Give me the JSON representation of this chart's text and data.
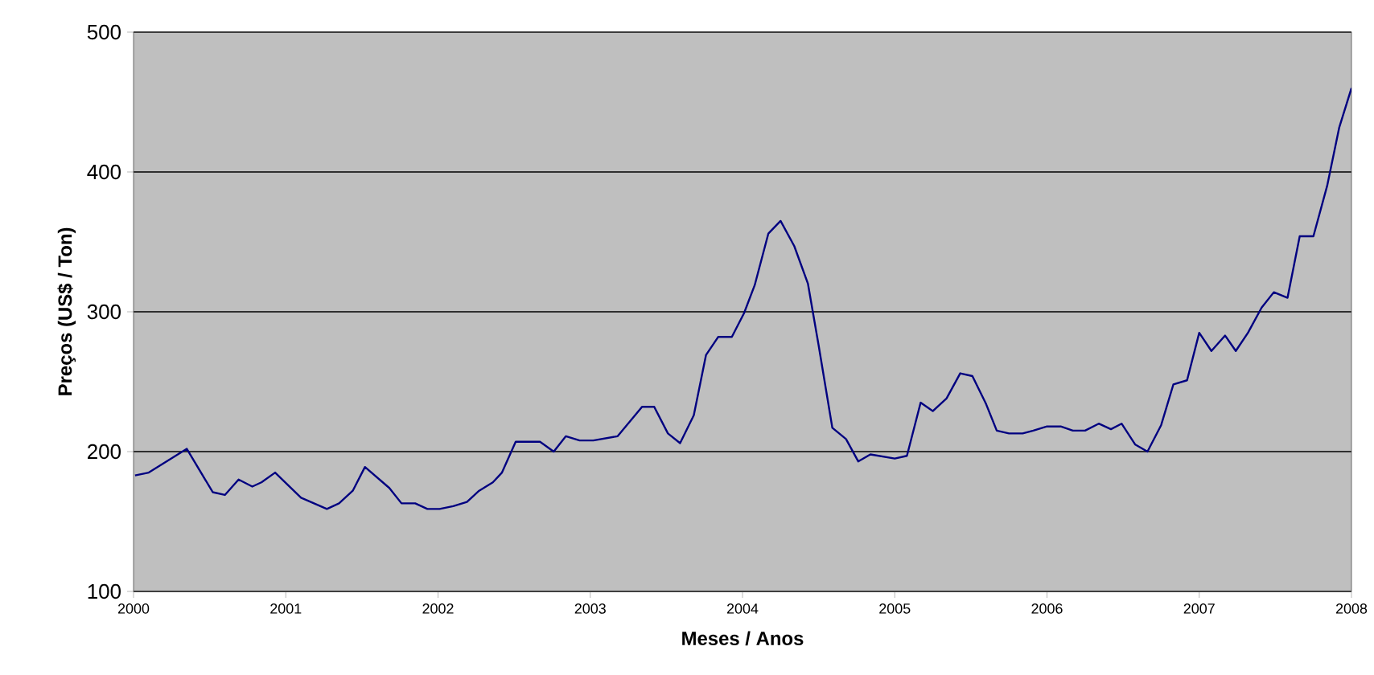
{
  "chart_data": {
    "type": "line",
    "xlabel": "Meses / Anos",
    "ylabel": "Preços (US$ / Ton)",
    "x": [
      2000.01,
      2000.1,
      2000.35,
      2000.52,
      2000.6,
      2000.69,
      2000.78,
      2000.84,
      2000.93,
      2001.1,
      2001.27,
      2001.35,
      2001.44,
      2001.52,
      2001.68,
      2001.76,
      2001.85,
      2001.93,
      2002.01,
      2002.1,
      2002.19,
      2002.27,
      2002.36,
      2002.42,
      2002.51,
      2002.67,
      2002.76,
      2002.84,
      2002.93,
      2003.02,
      2003.18,
      2003.34,
      2003.42,
      2003.51,
      2003.59,
      2003.68,
      2003.76,
      2003.84,
      2003.93,
      2004.01,
      2004.08,
      2004.17,
      2004.25,
      2004.34,
      2004.43,
      2004.5,
      2004.59,
      2004.68,
      2004.76,
      2004.84,
      2005.0,
      2005.08,
      2005.17,
      2005.25,
      2005.34,
      2005.43,
      2005.51,
      2005.6,
      2005.67,
      2005.75,
      2005.84,
      2005.91,
      2006.0,
      2006.09,
      2006.17,
      2006.25,
      2006.34,
      2006.42,
      2006.49,
      2006.58,
      2006.66,
      2006.75,
      2006.83,
      2006.92,
      2007.0,
      2007.08,
      2007.17,
      2007.24,
      2007.32,
      2007.41,
      2007.49,
      2007.58,
      2007.66,
      2007.75,
      2007.84,
      2007.92,
      2008.0
    ],
    "series": [
      {
        "color": "#000080",
        "values": [
          183,
          185,
          202,
          171,
          169,
          180,
          175,
          178,
          185,
          167,
          159,
          163,
          172,
          189,
          174,
          163,
          163,
          159,
          159,
          161,
          164,
          172,
          178,
          185,
          207,
          207,
          200,
          211,
          208,
          208,
          211,
          232,
          232,
          213,
          206,
          226,
          269,
          282,
          282,
          299,
          319,
          356,
          365,
          347,
          320,
          276,
          217,
          209,
          193,
          198,
          195,
          197,
          235,
          229,
          238,
          256,
          254,
          234,
          215,
          213,
          213,
          215,
          218,
          218,
          215,
          215,
          220,
          216,
          220,
          205,
          200,
          219,
          248,
          251,
          285,
          272,
          283,
          272,
          285,
          303,
          314,
          310,
          354,
          354,
          390,
          432,
          460
        ]
      }
    ],
    "xlim": [
      2000,
      2008
    ],
    "xticks": [
      2000,
      2001,
      2002,
      2003,
      2004,
      2005,
      2006,
      2007,
      2008
    ],
    "ylim": [
      100,
      500
    ],
    "yticks": [
      100,
      200,
      300,
      400,
      500
    ],
    "grid": "y",
    "marker": "none",
    "line_style": "solid"
  }
}
